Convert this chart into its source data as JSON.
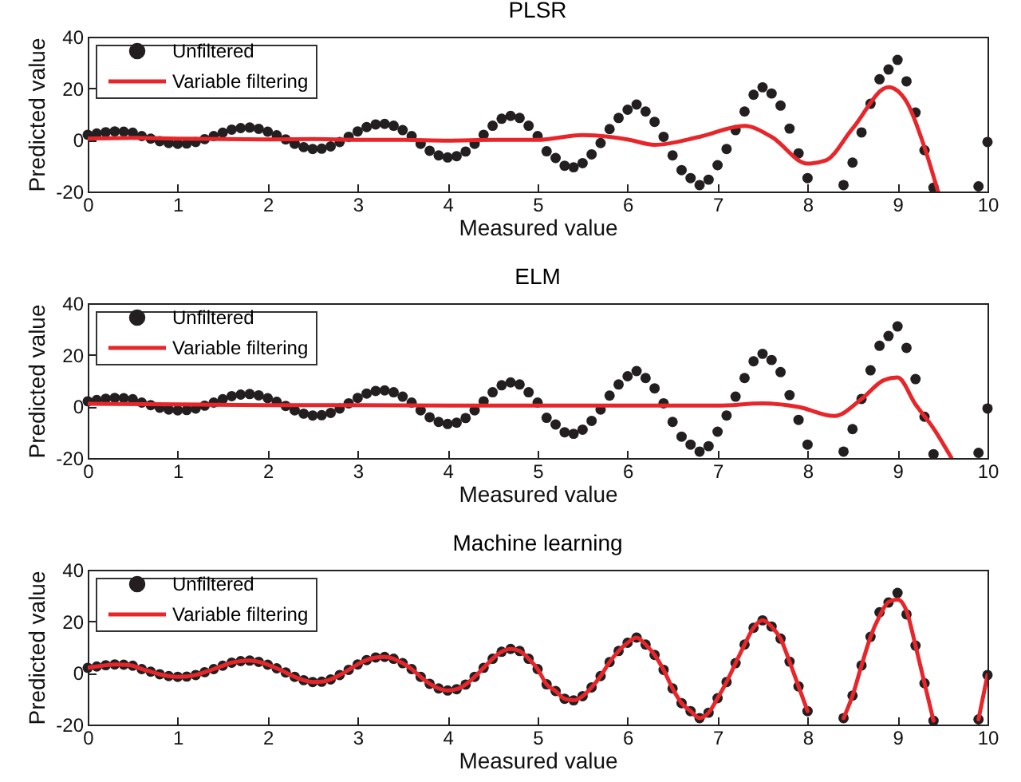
{
  "chart_data": [
    {
      "type": "scatter",
      "title": "PLSR",
      "xlabel": "Measured value",
      "ylabel": "Predicted value",
      "xlim": [
        0,
        10
      ],
      "ylim": [
        -20,
        40
      ],
      "xticks": [
        0,
        1,
        2,
        3,
        4,
        5,
        6,
        7,
        8,
        9,
        10
      ],
      "yticks": [
        -20,
        0,
        20,
        40
      ],
      "grid": false,
      "legend": "top left",
      "x": [
        0,
        0.1,
        0.2,
        0.3,
        0.4,
        0.5,
        0.6,
        0.7,
        0.8,
        0.9,
        1,
        1.1,
        1.2,
        1.3,
        1.4,
        1.5,
        1.6,
        1.7,
        1.8,
        1.9,
        2,
        2.1,
        2.2,
        2.3,
        2.4,
        2.5,
        2.6,
        2.7,
        2.8,
        2.9,
        3,
        3.1,
        3.2,
        3.3,
        3.4,
        3.5,
        3.6,
        3.7,
        3.8,
        3.9,
        4,
        4.1,
        4.2,
        4.3,
        4.4,
        4.5,
        4.6,
        4.7,
        4.8,
        4.9,
        5,
        5.1,
        5.2,
        5.3,
        5.4,
        5.5,
        5.6,
        5.7,
        5.8,
        5.9,
        6,
        6.1,
        6.2,
        6.3,
        6.4,
        6.5,
        6.6,
        6.7,
        6.8,
        6.9,
        7,
        7.1,
        7.2,
        7.3,
        7.4,
        7.5,
        7.6,
        7.7,
        7.8,
        7.9,
        8,
        8.1,
        8.2,
        8.3,
        8.4,
        8.5,
        8.6,
        8.7,
        8.8,
        8.9,
        9,
        9.1,
        9.2,
        9.3,
        9.4,
        9.5,
        9.6,
        9.7,
        9.8,
        9.9,
        10
      ],
      "series": [
        {
          "name": "Unfiltered",
          "marker": "circle",
          "color": "#231f20",
          "values": [
            2,
            2.5,
            3,
            3.3,
            3.2,
            2.8,
            1.5,
            0.5,
            -0.5,
            -1.2,
            -1.5,
            -1.4,
            -0.8,
            0.3,
            1.5,
            2.8,
            4,
            4.6,
            4.8,
            4.3,
            3.2,
            1.8,
            0.2,
            -1.5,
            -2.8,
            -3.5,
            -3.4,
            -2.5,
            -0.8,
            1.2,
            3.3,
            5,
            6,
            6.2,
            5.5,
            3.8,
            1.5,
            -1.5,
            -4.2,
            -6,
            -6.8,
            -6.3,
            -4.5,
            -1.5,
            2,
            5.5,
            8.2,
            9.3,
            8.5,
            5.5,
            1.5,
            -4.4,
            -7,
            -10,
            -10.6,
            -9,
            -5.6,
            -1.2,
            4.2,
            8.5,
            11.7,
            13.7,
            11,
            7,
            1.2,
            -6,
            -11.7,
            -14.8,
            -17.5,
            -15.4,
            -9.8,
            -3.5,
            3.8,
            11,
            17.5,
            20.4,
            18,
            13.3,
            4.4,
            -5.2,
            -14.8,
            null,
            null,
            null,
            -17.5,
            -8.8,
            2.9,
            14,
            23.5,
            27.3,
            31,
            22.7,
            10.6,
            -4,
            -18.5,
            null,
            null,
            null,
            null,
            -18,
            -0.8
          ]
        },
        {
          "name": "Variable filtering",
          "type": "line",
          "color": "#e8262a",
          "x": [
            0,
            0.5,
            1,
            1.5,
            2,
            2.5,
            3,
            3.5,
            4,
            4.5,
            5,
            5.5,
            6,
            6.3,
            6.8,
            7.3,
            7.6,
            8,
            8.2,
            8.5,
            8.9,
            9.1,
            9.3,
            9.45
          ],
          "values": [
            0.5,
            0.8,
            0.5,
            0.3,
            0.2,
            0.3,
            0,
            0,
            -0.3,
            0,
            0,
            1.9,
            0.2,
            -1.9,
            1.2,
            5.4,
            1.2,
            -9.2,
            -8,
            4.4,
            20.4,
            14.8,
            -2.9,
            -20
          ]
        }
      ]
    },
    {
      "type": "scatter",
      "title": "ELM",
      "xlabel": "Measured value",
      "ylabel": "Predicted value",
      "xlim": [
        0,
        10
      ],
      "ylim": [
        -20,
        40
      ],
      "xticks": [
        0,
        1,
        2,
        3,
        4,
        5,
        6,
        7,
        8,
        9,
        10
      ],
      "yticks": [
        -20,
        0,
        20,
        40
      ],
      "grid": false,
      "legend": "top left",
      "x": [
        0,
        0.1,
        0.2,
        0.3,
        0.4,
        0.5,
        0.6,
        0.7,
        0.8,
        0.9,
        1,
        1.1,
        1.2,
        1.3,
        1.4,
        1.5,
        1.6,
        1.7,
        1.8,
        1.9,
        2,
        2.1,
        2.2,
        2.3,
        2.4,
        2.5,
        2.6,
        2.7,
        2.8,
        2.9,
        3,
        3.1,
        3.2,
        3.3,
        3.4,
        3.5,
        3.6,
        3.7,
        3.8,
        3.9,
        4,
        4.1,
        4.2,
        4.3,
        4.4,
        4.5,
        4.6,
        4.7,
        4.8,
        4.9,
        5,
        5.1,
        5.2,
        5.3,
        5.4,
        5.5,
        5.6,
        5.7,
        5.8,
        5.9,
        6,
        6.1,
        6.2,
        6.3,
        6.4,
        6.5,
        6.6,
        6.7,
        6.8,
        6.9,
        7,
        7.1,
        7.2,
        7.3,
        7.4,
        7.5,
        7.6,
        7.7,
        7.8,
        7.9,
        8,
        8.1,
        8.2,
        8.3,
        8.4,
        8.5,
        8.6,
        8.7,
        8.8,
        8.9,
        9,
        9.1,
        9.2,
        9.3,
        9.4,
        9.5,
        9.6,
        9.7,
        9.8,
        9.9,
        10
      ],
      "series": [
        {
          "name": "Unfiltered",
          "marker": "circle",
          "color": "#231f20",
          "values": [
            2,
            2.5,
            3,
            3.3,
            3.2,
            2.8,
            1.5,
            0.5,
            -0.5,
            -1.2,
            -1.5,
            -1.4,
            -0.8,
            0.3,
            1.5,
            2.8,
            4,
            4.6,
            4.8,
            4.3,
            3.2,
            1.8,
            0.2,
            -1.5,
            -2.8,
            -3.5,
            -3.4,
            -2.5,
            -0.8,
            1.2,
            3.3,
            5,
            6,
            6.2,
            5.5,
            3.8,
            1.5,
            -1.5,
            -4.2,
            -6,
            -6.8,
            -6.3,
            -4.5,
            -1.5,
            2,
            5.5,
            8.2,
            9.3,
            8.5,
            5.5,
            1.5,
            -4.4,
            -7,
            -10,
            -10.6,
            -9,
            -5.6,
            -1.2,
            4.2,
            8.5,
            11.7,
            13.7,
            11,
            7,
            1.2,
            -6,
            -11.7,
            -14.8,
            -17.5,
            -15.4,
            -9.8,
            -3.5,
            3.8,
            11,
            17.5,
            20.4,
            18,
            13.3,
            4.4,
            -5.2,
            -14.8,
            null,
            null,
            null,
            -17.5,
            -8.8,
            2.9,
            14,
            23.5,
            27.3,
            31,
            22.7,
            10.6,
            -4,
            -18.5,
            null,
            null,
            null,
            null,
            -18,
            -0.8
          ]
        },
        {
          "name": "Variable filtering",
          "type": "line",
          "color": "#e8262a",
          "x": [
            0,
            1,
            2,
            3,
            4,
            5,
            6,
            7,
            7.5,
            7.9,
            8.3,
            8.6,
            8.85,
            9,
            9.2,
            9.4,
            9.6
          ],
          "values": [
            1,
            0.8,
            0.5,
            0.5,
            0.3,
            0.3,
            0.3,
            0.3,
            1.2,
            -0.2,
            -3.7,
            2.9,
            10.2,
            11.2,
            0.8,
            -8.5,
            -20
          ]
        }
      ]
    },
    {
      "type": "scatter",
      "title": "Machine learning",
      "xlabel": "Measured value",
      "ylabel": "Predicted value",
      "xlim": [
        0,
        10
      ],
      "ylim": [
        -20,
        40
      ],
      "xticks": [
        0,
        1,
        2,
        3,
        4,
        5,
        6,
        7,
        8,
        9,
        10
      ],
      "yticks": [
        -20,
        0,
        20,
        40
      ],
      "grid": false,
      "legend": "top left",
      "x": [
        0,
        0.1,
        0.2,
        0.3,
        0.4,
        0.5,
        0.6,
        0.7,
        0.8,
        0.9,
        1,
        1.1,
        1.2,
        1.3,
        1.4,
        1.5,
        1.6,
        1.7,
        1.8,
        1.9,
        2,
        2.1,
        2.2,
        2.3,
        2.4,
        2.5,
        2.6,
        2.7,
        2.8,
        2.9,
        3,
        3.1,
        3.2,
        3.3,
        3.4,
        3.5,
        3.6,
        3.7,
        3.8,
        3.9,
        4,
        4.1,
        4.2,
        4.3,
        4.4,
        4.5,
        4.6,
        4.7,
        4.8,
        4.9,
        5,
        5.1,
        5.2,
        5.3,
        5.4,
        5.5,
        5.6,
        5.7,
        5.8,
        5.9,
        6,
        6.1,
        6.2,
        6.3,
        6.4,
        6.5,
        6.6,
        6.7,
        6.8,
        6.9,
        7,
        7.1,
        7.2,
        7.3,
        7.4,
        7.5,
        7.6,
        7.7,
        7.8,
        7.9,
        8,
        8.1,
        8.2,
        8.3,
        8.4,
        8.5,
        8.6,
        8.7,
        8.8,
        8.9,
        9,
        9.1,
        9.2,
        9.3,
        9.4,
        9.5,
        9.6,
        9.7,
        9.8,
        9.9,
        10
      ],
      "series": [
        {
          "name": "Unfiltered",
          "marker": "circle",
          "color": "#231f20",
          "values": [
            2,
            2.5,
            3,
            3.3,
            3.2,
            2.8,
            1.5,
            0.5,
            -0.5,
            -1.2,
            -1.5,
            -1.4,
            -0.8,
            0.3,
            1.5,
            2.8,
            4,
            4.6,
            4.8,
            4.3,
            3.2,
            1.8,
            0.2,
            -1.5,
            -2.8,
            -3.5,
            -3.4,
            -2.5,
            -0.8,
            1.2,
            3.3,
            5,
            6,
            6.2,
            5.5,
            3.8,
            1.5,
            -1.5,
            -4.2,
            -6,
            -6.8,
            -6.3,
            -4.5,
            -1.5,
            2,
            5.5,
            8.2,
            9.3,
            8.5,
            5.5,
            1.5,
            -4.4,
            -7,
            -10,
            -10.6,
            -9,
            -5.6,
            -1.2,
            4.2,
            8.5,
            11.7,
            13.7,
            11,
            7,
            1.2,
            -6,
            -11.7,
            -14.8,
            -17.5,
            -15.4,
            -9.8,
            -3.5,
            3.8,
            11,
            17.5,
            20.4,
            18,
            13.3,
            4.4,
            -5.2,
            -14.8,
            null,
            null,
            null,
            -17.5,
            -8.8,
            2.9,
            14,
            23.5,
            27.3,
            31,
            22.7,
            10.6,
            -4,
            -18.5,
            null,
            null,
            null,
            null,
            -18,
            -0.8
          ]
        },
        {
          "name": "Variable filtering",
          "type": "line",
          "color": "#e8262a",
          "values": [
            2,
            2.5,
            3,
            3.3,
            3.2,
            2.8,
            1.5,
            0.5,
            -0.5,
            -1.2,
            -1.5,
            -1.4,
            -0.8,
            0.3,
            1.5,
            2.8,
            4,
            4.6,
            4.8,
            4.3,
            3.2,
            1.8,
            0.2,
            -1.5,
            -2.8,
            -3.5,
            -3.4,
            -2.5,
            -0.8,
            1.2,
            3.3,
            5,
            6,
            6.2,
            5.5,
            3.8,
            1.5,
            -1.5,
            -4.2,
            -6,
            -6.8,
            -6.3,
            -4.5,
            -1.5,
            2,
            5.5,
            8.2,
            9.3,
            8.5,
            5.5,
            1.5,
            -4.4,
            -7,
            -10,
            -10.6,
            -9,
            -5.6,
            -1.2,
            4.2,
            8.5,
            11.7,
            13.7,
            11,
            7,
            1.2,
            -6,
            -11.7,
            -14.8,
            -17.5,
            -15.4,
            -9.8,
            -3.5,
            3.8,
            11,
            17.5,
            20.4,
            18,
            13.3,
            4.4,
            -5.2,
            -14.8,
            null,
            null,
            null,
            -17.5,
            -8.8,
            2.9,
            14,
            22,
            27.5,
            28.5,
            24,
            10.6,
            -4,
            -18.5,
            null,
            null,
            null,
            null,
            -18,
            -0.8
          ]
        }
      ]
    }
  ]
}
